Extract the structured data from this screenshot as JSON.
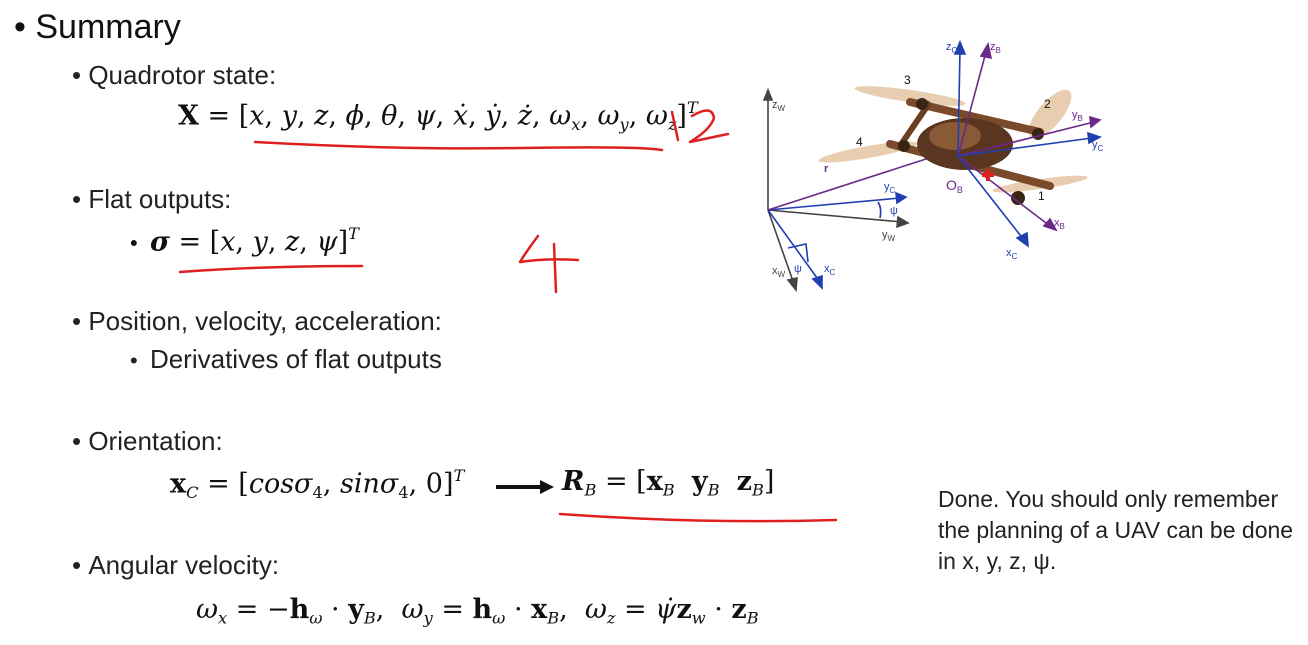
{
  "slide": {
    "title": "Summary",
    "sections": {
      "state": {
        "heading": "Quadrotor state:",
        "equation_lhs": "X",
        "equation_rhs": "= [x, y, z, ϕ, θ, ψ, ẋ, ẏ, ż, ω",
        "handwritten_count": "12"
      },
      "flat": {
        "heading": "Flat outputs:",
        "equation": "σ = [x, y, z, ψ]",
        "handwritten_count": "4"
      },
      "pva": {
        "heading": "Position, velocity, acceleration:",
        "sub_item": "Derivatives of flat outputs"
      },
      "orientation": {
        "heading": "Orientation:"
      },
      "angular": {
        "heading": "Angular velocity:"
      }
    },
    "note": "Done. You should only remember the planning of a UAV can be done in x, y, z, ψ.",
    "diagram": {
      "labels": {
        "zC": "z",
        "zB": "z",
        "zW": "z",
        "yB": "y",
        "yC": "y",
        "yC2": "y",
        "yW": "y",
        "xB": "x",
        "xC": "x",
        "xC2": "x",
        "xW": "x",
        "OB": "O",
        "r": "r",
        "psi": "ψ",
        "psi2": "ψ",
        "rotor1": "1",
        "rotor2": "2",
        "rotor3": "3",
        "rotor4": "4"
      },
      "colors": {
        "world": "#444444",
        "c_frame": "#1f3fb0",
        "b_frame": "#6a2a8a",
        "annotation": "#e02020"
      }
    }
  }
}
